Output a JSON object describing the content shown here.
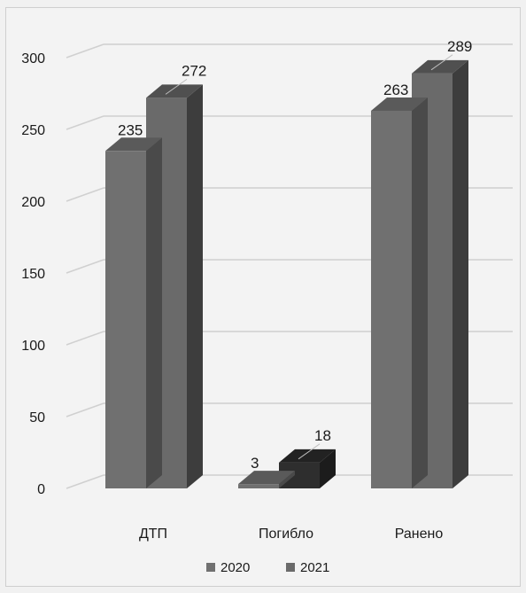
{
  "chart_data": {
    "type": "bar",
    "categories": [
      "ДТП",
      "Погибло",
      "Ранено"
    ],
    "series": [
      {
        "name": "2020",
        "values": [
          235,
          3,
          263
        ]
      },
      {
        "name": "2021",
        "values": [
          272,
          18,
          289
        ]
      }
    ],
    "ylim": [
      0,
      300
    ],
    "yticks": [
      0,
      50,
      100,
      150,
      200,
      250,
      300
    ],
    "grid": true,
    "legend_position": "bottom",
    "colors": {
      "2020": "#6e6e6e",
      "2021": "#6a6a6a",
      "2021_small": "#2e2e2e"
    }
  }
}
